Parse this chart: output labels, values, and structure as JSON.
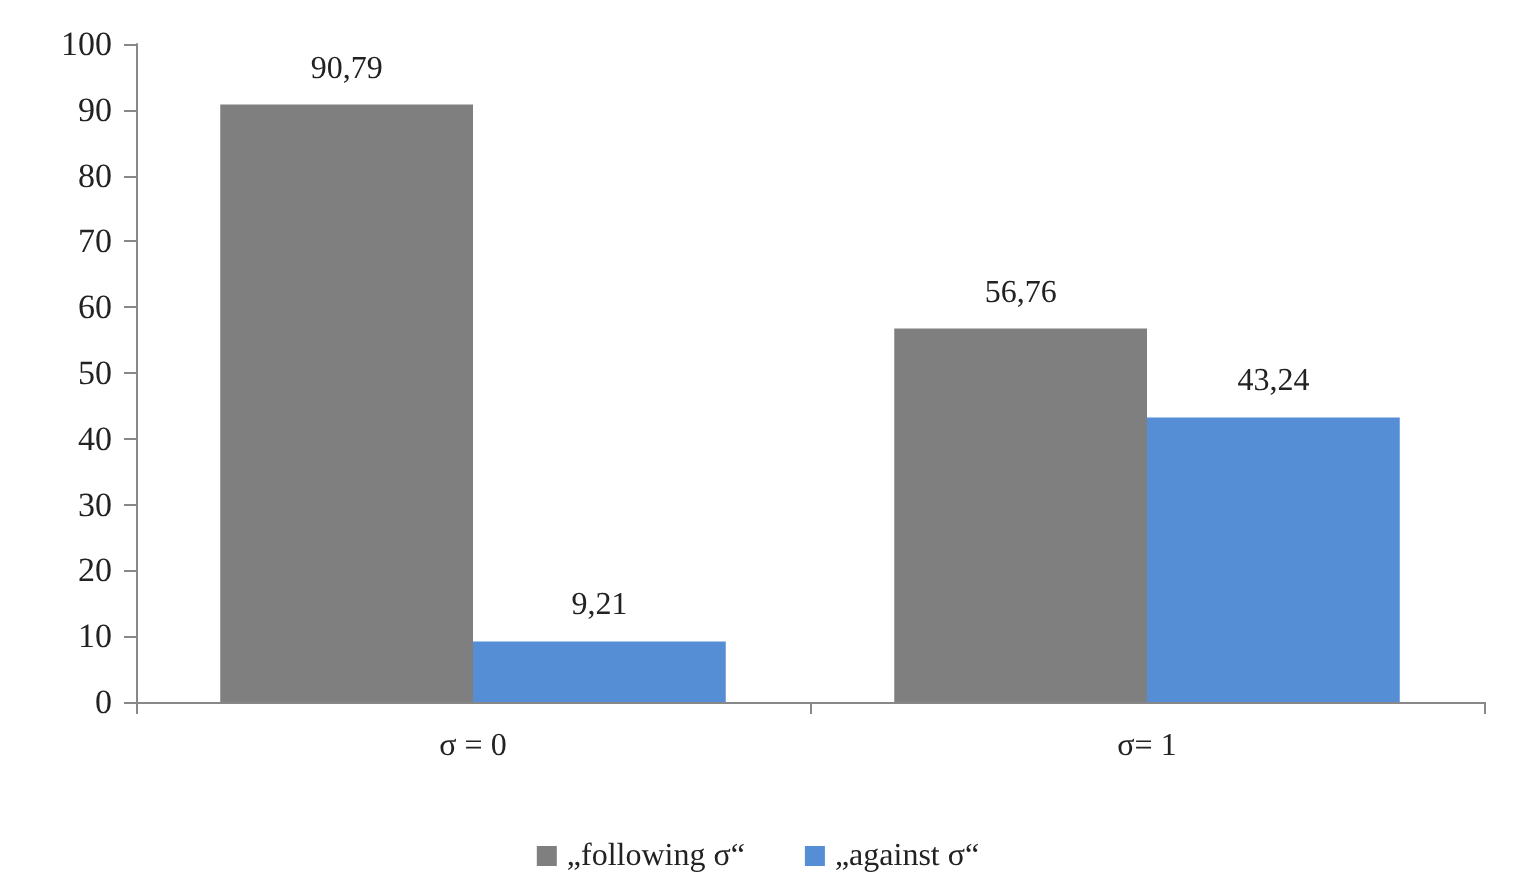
{
  "chart_data": {
    "type": "bar",
    "categories": [
      "σ = 0",
      "σ= 1"
    ],
    "series": [
      {
        "name": "„following σ“",
        "color": "#7f7f7f",
        "values": [
          90.79,
          56.76
        ],
        "value_labels": [
          "90,79",
          "56,76"
        ]
      },
      {
        "name": "„against σ“",
        "color": "#558ed5",
        "values": [
          9.21,
          43.24
        ],
        "value_labels": [
          "9,21",
          "43,24"
        ]
      }
    ],
    "ylim": [
      0,
      100
    ],
    "yticks": [
      0,
      10,
      20,
      30,
      40,
      50,
      60,
      70,
      80,
      90,
      100
    ],
    "grid": false,
    "legend": "bottom"
  }
}
